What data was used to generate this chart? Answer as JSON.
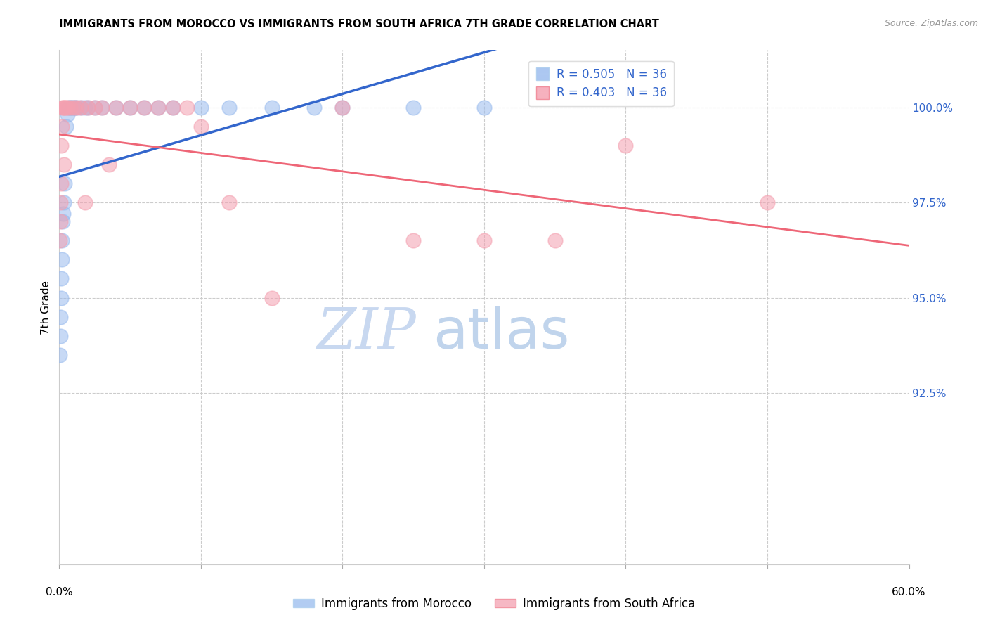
{
  "title": "IMMIGRANTS FROM MOROCCO VS IMMIGRANTS FROM SOUTH AFRICA 7TH GRADE CORRELATION CHART",
  "source": "Source: ZipAtlas.com",
  "ylabel": "7th Grade",
  "xlim": [
    0.0,
    60.0
  ],
  "ylim": [
    88.0,
    101.5
  ],
  "yticks": [
    92.5,
    95.0,
    97.5,
    100.0
  ],
  "ytick_labels": [
    "92.5%",
    "95.0%",
    "97.5%",
    "100.0%"
  ],
  "r_morocco": 0.505,
  "n_morocco": 36,
  "r_south_africa": 0.403,
  "n_south_africa": 36,
  "color_morocco": "#99bbee",
  "color_south_africa": "#f4a0b0",
  "trendline_morocco": "#3366cc",
  "trendline_south_africa": "#ee6677",
  "legend_morocco": "Immigrants from Morocco",
  "legend_south_africa": "Immigrants from South Africa",
  "background_color": "#ffffff",
  "watermark_zip": "ZIP",
  "watermark_atlas": "atlas",
  "watermark_color_zip": "#c8d8f0",
  "watermark_color_atlas": "#b0c8e8"
}
